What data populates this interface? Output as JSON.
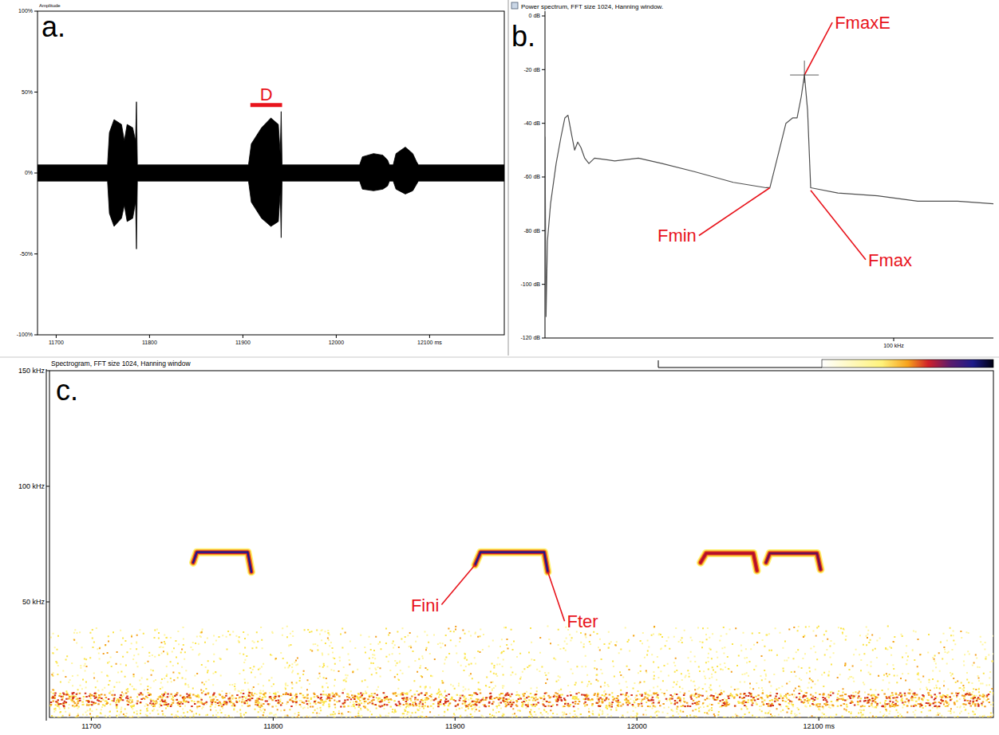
{
  "chart_data": [
    {
      "type": "area",
      "panel": "a.",
      "y_label": "Amplitude",
      "x": [
        11680,
        11755,
        11757,
        11762,
        11770,
        11773,
        11776,
        11782,
        11785,
        11786,
        11787,
        11906,
        11909,
        11920,
        11930,
        11938,
        11940,
        11941,
        11942,
        12025,
        12028,
        12040,
        12050,
        12055,
        12057,
        12061,
        12064,
        12074,
        12082,
        12086,
        12088,
        12180
      ],
      "series": [
        {
          "color": "#000000",
          "values": [
            5,
            5,
            25,
            33,
            30,
            20,
            30,
            28,
            20,
            44,
            5,
            5,
            18,
            28,
            34,
            30,
            12,
            38,
            5,
            5,
            10,
            12,
            11,
            8,
            5,
            5,
            12,
            16,
            12,
            7,
            5,
            5
          ]
        },
        {
          "color": "#000000",
          "values": [
            -5,
            -5,
            -25,
            -33,
            -28,
            -20,
            -30,
            -28,
            -18,
            -47,
            -5,
            -5,
            -18,
            -28,
            -33,
            -30,
            -12,
            -40,
            -5,
            -5,
            -10,
            -11,
            -10,
            -8,
            -5,
            -5,
            -10,
            -13,
            -11,
            -7,
            -5,
            -5
          ]
        }
      ],
      "xlim": [
        11680,
        12180
      ],
      "ylim": [
        -100,
        100
      ],
      "xticks": [
        11700,
        11800,
        11900,
        12000,
        {
          "value": 12100,
          "label": "12100 ms"
        }
      ],
      "yticks": [
        {
          "value": 100,
          "label": "100%"
        },
        {
          "value": 50,
          "label": "50%"
        },
        {
          "value": 0,
          "label": "0%"
        },
        {
          "value": -50,
          "label": "-50%"
        },
        {
          "value": -100,
          "label": "-100%"
        }
      ],
      "annotations": [
        {
          "text": "D",
          "x": [
            11908,
            11942
          ],
          "y": 42,
          "color": "#e8141c"
        }
      ]
    },
    {
      "type": "line",
      "panel": "b.",
      "title": "Power spectrum, FFT size 1024, Hanning window.",
      "x": [
        0,
        0.3,
        0.7,
        1.6,
        3.2,
        4.6,
        5.7,
        6.6,
        7.6,
        8.5,
        9.4,
        10.3,
        11.4,
        12.6,
        14.2,
        20,
        26.8,
        33.6,
        42.8,
        54,
        63.4,
        64.5,
        66.8,
        69.1,
        71,
        72.3,
        73.5,
        74.4,
        75.3,
        76.2,
        84,
        95.4,
        106.9,
        118.3,
        128.6
      ],
      "series": [
        {
          "color": "#505050",
          "values": [
            -45,
            -112,
            -84,
            -70,
            -55,
            -45,
            -38,
            -37,
            -44,
            -50,
            -47,
            -49,
            -53,
            -55,
            -53,
            -54,
            -53,
            -55,
            -58,
            -62,
            -64,
            -64,
            -52,
            -40,
            -38,
            -38,
            -30,
            -22,
            -35,
            -64,
            -66,
            -67,
            -69,
            -69,
            -70
          ]
        }
      ],
      "xlim": [
        0,
        128.6
      ],
      "ylim": [
        -120,
        0
      ],
      "xticks": [
        {
          "value": 100,
          "label": "100 kHz"
        }
      ],
      "yticks": [
        {
          "value": 0,
          "label": "0 dB"
        },
        {
          "value": -20,
          "label": "-20 dB"
        },
        {
          "value": -40,
          "label": "-40 dB"
        },
        {
          "value": -60,
          "label": "-60 dB"
        },
        {
          "value": -80,
          "label": "-80 dB"
        },
        {
          "value": -100,
          "label": "-100 dB"
        },
        {
          "value": -120,
          "label": "-120 dB"
        }
      ],
      "annotations": [
        {
          "text": "FmaxE",
          "x": 74.4,
          "y": -22,
          "color": "#e8141c",
          "marker": "cross"
        },
        {
          "text": "Fmin",
          "x": 64.5,
          "y": -64,
          "color": "#e8141c"
        },
        {
          "text": "Fmax",
          "x": 76.2,
          "y": -65,
          "color": "#e8141c"
        }
      ]
    },
    {
      "type": "spectrogram",
      "panel": "c.",
      "title": "Spectrogram, FFT size 1024, Hanning window",
      "series": [
        {
          "x": [
            11756,
            11758,
            11786,
            11788
          ],
          "values": [
            67,
            71.5,
            71.5,
            63
          ],
          "color": "#1c1a8a"
        },
        {
          "x": [
            11911,
            11914,
            11949,
            11951
          ],
          "values": [
            66,
            71.5,
            71.5,
            63
          ],
          "color": "#1c1a8a"
        },
        {
          "x": [
            12035,
            12038,
            12064,
            12066
          ],
          "values": [
            67,
            71,
            71,
            63.5
          ],
          "color": "#b0102a"
        },
        {
          "x": [
            12071,
            12073,
            12099,
            12101
          ],
          "values": [
            67,
            71,
            71,
            64
          ],
          "color": "#6a1050"
        }
      ],
      "noise_band": [
        0,
        40
      ],
      "noise_line": [
        5,
        11
      ],
      "xlim": [
        11677,
        12196
      ],
      "ylim": [
        0,
        150
      ],
      "xticks": [
        11700,
        11800,
        11900,
        12000,
        {
          "value": 12100,
          "label": "12100 ms"
        }
      ],
      "yticks": [
        {
          "value": 50,
          "label": "50 kHz"
        },
        {
          "value": 100,
          "label": "100 kHz"
        },
        {
          "value": 150,
          "label": "150 kHz"
        }
      ],
      "annotations": [
        {
          "text": "Fini",
          "x": 11911,
          "y": 66,
          "color": "#e8141c"
        },
        {
          "text": "Fter",
          "x": 11951,
          "y": 63,
          "color": "#e8141c"
        }
      ]
    }
  ]
}
